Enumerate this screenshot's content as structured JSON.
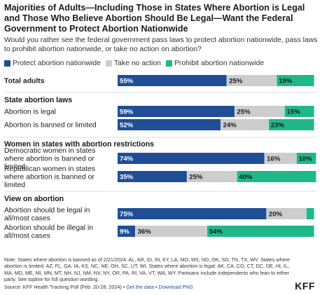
{
  "title": "Majorities of Adults—Including Those in States Where Abortion is Legal and Those Who Believe Abortion Should Be Legal—Want the Federal Government to Protect Abortion Nationwide",
  "subtitle": "Would you rather see the federal government pass laws to protect abortion nationwide, pass laws to prohibit abortion nationwide, or take no action on abortion?",
  "colors": {
    "protect": "#1f4e96",
    "no_action": "#cdcdcd",
    "prohibit": "#1fb889",
    "divider": "#dddddd"
  },
  "chart_data": {
    "type": "bar",
    "orientation": "horizontal",
    "stacked": true,
    "legend_position": "top-left",
    "xlim": [
      0,
      100
    ],
    "series": [
      {
        "name": "Protect abortion nationwide",
        "key": "protect"
      },
      {
        "name": "Take no action",
        "key": "no_action"
      },
      {
        "name": "Prohibit abortion nationwide",
        "key": "prohibit"
      }
    ],
    "groups": [
      {
        "header": "",
        "rows": [
          {
            "label": "Total adults",
            "bold": true,
            "values": [
              55,
              25,
              19
            ]
          }
        ]
      },
      {
        "header": "State abortion laws",
        "rows": [
          {
            "label": "Abortion is legal",
            "values": [
              59,
              25,
              15
            ]
          },
          {
            "label": "Abortion is banned or limited",
            "values": [
              52,
              24,
              23
            ]
          }
        ]
      },
      {
        "header": "Women in states with abortion restrictions",
        "rows": [
          {
            "label": "Democratic women in states where abortion is banned or limited",
            "values": [
              74,
              16,
              10
            ]
          },
          {
            "label": "Republican women in states where abortion is banned or limited",
            "values": [
              35,
              25,
              40
            ]
          }
        ]
      },
      {
        "header": "View on abortion",
        "rows": [
          {
            "label": "Abortion should be legal in all/most cases",
            "values": [
              75,
              20,
              4
            ]
          },
          {
            "label": "Abortion should be illegal in all/most cases",
            "values": [
              9,
              36,
              54
            ]
          }
        ]
      }
    ]
  },
  "note": "Note: States where abortion is banned as of 2/21/2024: AL, AR, ID, IN, KY, LA, MO, MS, ND, OK, SD, TN, TX, WV. States where abortion is limited: AZ, FL, GA, IA, KS, NC, NE, OH, SC, UT, WI. States where abortion is legal: AK, CA, CO, CT, DC, DE, HI, IL, MA, MD, ME, MI, MN, MT, NH, NJ, NM, NV, NY, OR, PA, RI, VA, VT, WA, WY. Partisans include independents who lean to either party. See topline for full question wording.",
  "source": {
    "text": "Source: KFF Health Tracking Poll (Feb. 20-28, 2024) • ",
    "get_data": "Get the data",
    "separator": " • ",
    "download": "Download PNG"
  },
  "brand": "KFF"
}
